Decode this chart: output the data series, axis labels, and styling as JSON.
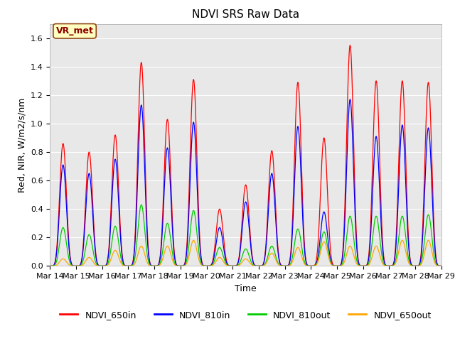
{
  "title": "NDVI SRS Raw Data",
  "xlabel": "Time",
  "ylabel": "Red, NIR, W/m2/s/nm",
  "ylim": [
    0,
    1.7
  ],
  "annotation_text": "VR_met",
  "annotation_bbox_facecolor": "#ffffc0",
  "annotation_bbox_edgecolor": "#8B4513",
  "background_color": "#e8e8e8",
  "series_colors": {
    "NDVI_650in": "#ff0000",
    "NDVI_810in": "#0000ff",
    "NDVI_810out": "#00cc00",
    "NDVI_650out": "#ffa500"
  },
  "title_fontsize": 11,
  "axis_label_fontsize": 9,
  "tick_fontsize": 8,
  "legend_fontsize": 9,
  "daily_peaks": {
    "NDVI_650in": [
      0.86,
      0.8,
      0.92,
      1.43,
      1.03,
      1.31,
      0.4,
      0.57,
      0.81,
      1.29,
      0.9,
      1.55,
      1.3,
      1.3,
      1.29
    ],
    "NDVI_810in": [
      0.71,
      0.65,
      0.75,
      1.13,
      0.83,
      1.01,
      0.27,
      0.45,
      0.65,
      0.98,
      0.38,
      1.17,
      0.91,
      0.99,
      0.97
    ],
    "NDVI_810out": [
      0.27,
      0.22,
      0.28,
      0.43,
      0.3,
      0.39,
      0.13,
      0.12,
      0.14,
      0.26,
      0.24,
      0.35,
      0.35,
      0.35,
      0.36
    ],
    "NDVI_650out": [
      0.05,
      0.06,
      0.11,
      0.14,
      0.14,
      0.18,
      0.06,
      0.05,
      0.09,
      0.13,
      0.17,
      0.14,
      0.14,
      0.18,
      0.18
    ]
  },
  "xtick_labels": [
    "Mar 14",
    "Mar 15",
    "Mar 16",
    "Mar 17",
    "Mar 18",
    "Mar 19",
    "Mar 20",
    "Mar 21",
    "Mar 22",
    "Mar 23",
    "Mar 24",
    "Mar 25",
    "Mar 26",
    "Mar 27",
    "Mar 28",
    "Mar 29"
  ],
  "figsize": [
    6.4,
    4.8
  ],
  "dpi": 100
}
